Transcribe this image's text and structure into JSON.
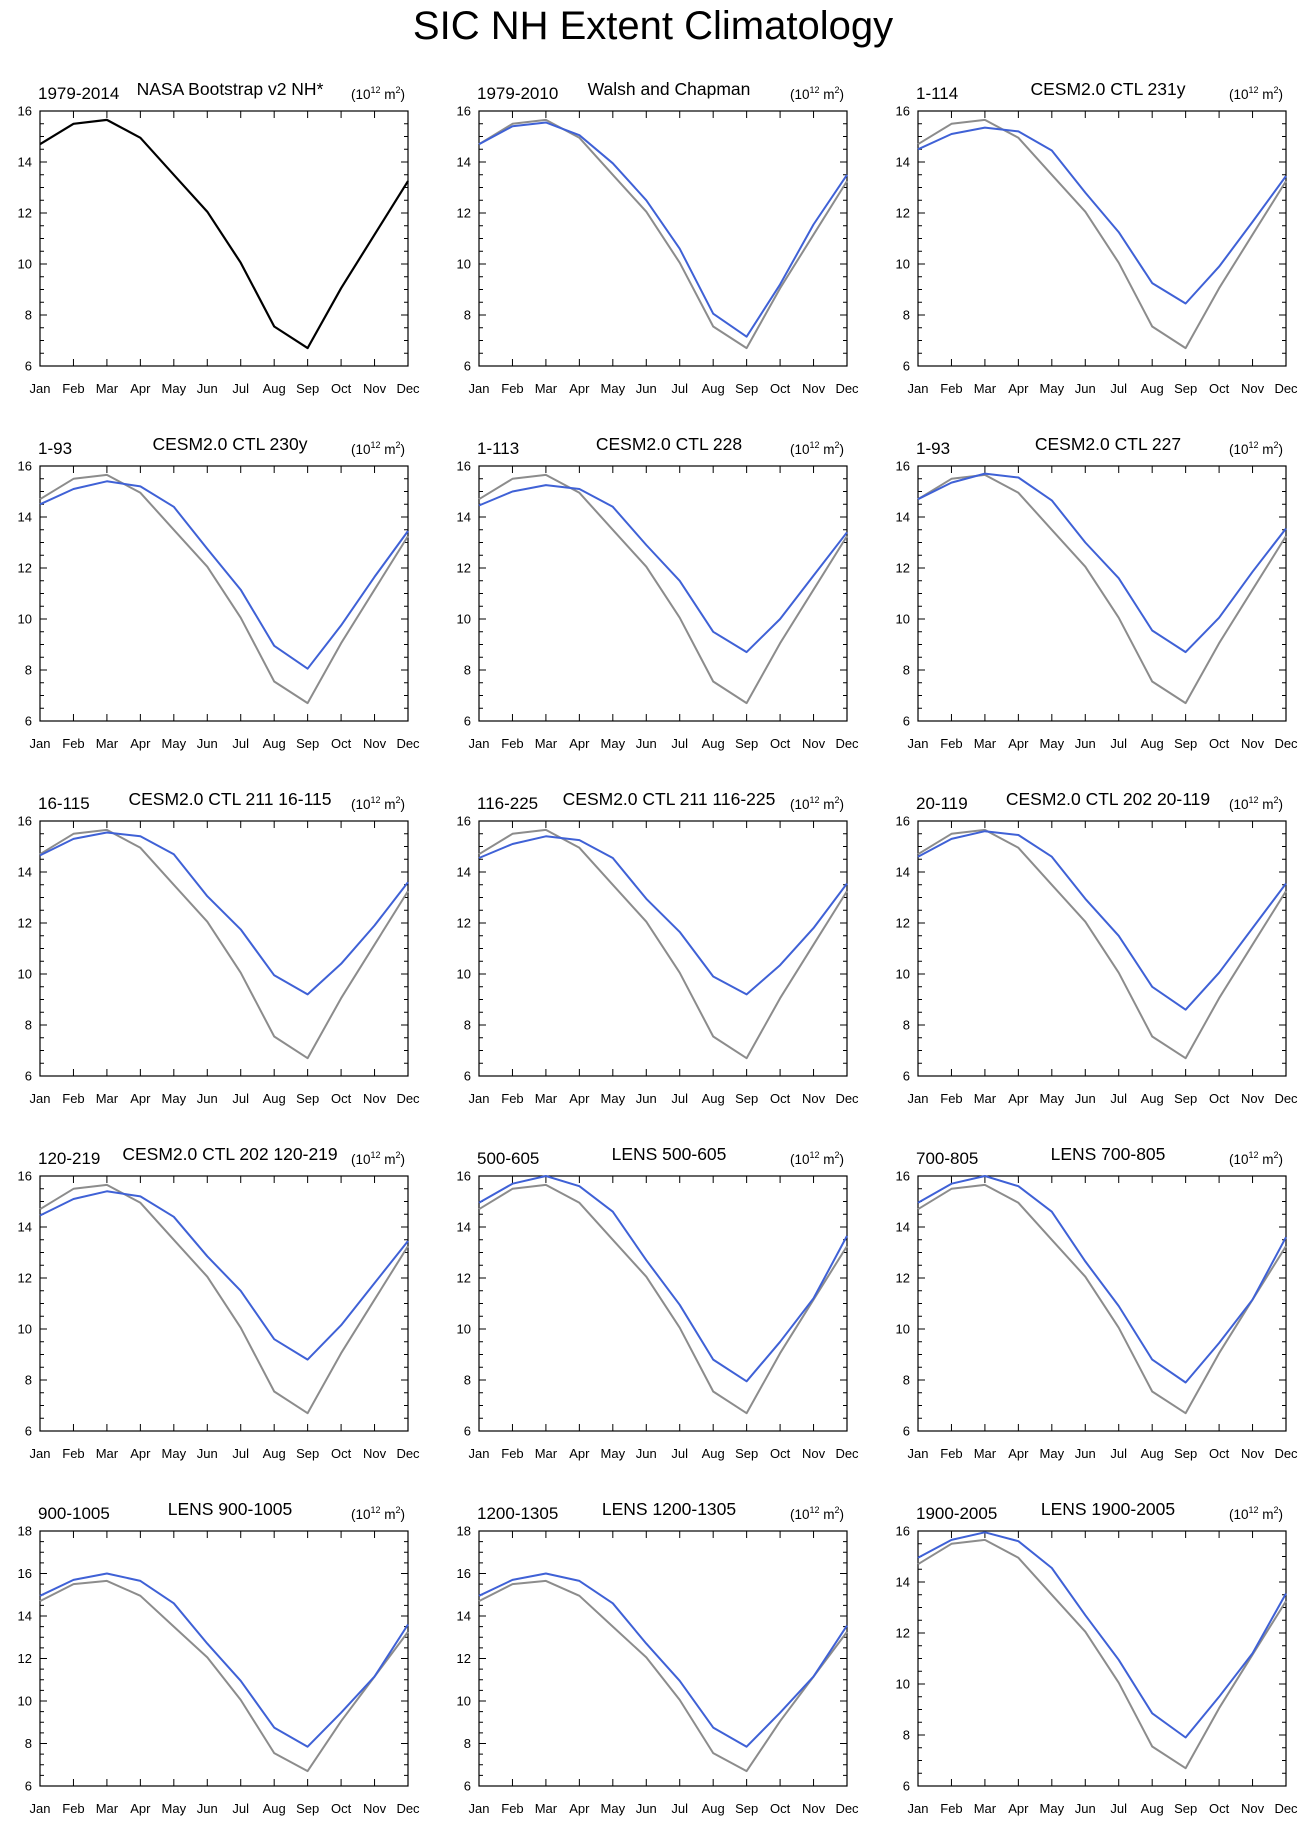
{
  "figure": {
    "title": "SIC NH Extent Climatology"
  },
  "colors": {
    "observation": "#000000",
    "reference": "#8c8c8c",
    "model": "#3f61d6"
  },
  "chart_data": [
    {
      "type": "line",
      "left_title": "1979-2014",
      "center_title": "NASA Bootstrap v2 NH*",
      "right_title": "(10",
      "right_title_exp": "12",
      "right_title_unit": "m",
      "right_title_unit_exp": "2",
      "right_title_close": ")",
      "categories": [
        "Jan",
        "Feb",
        "Mar",
        "Apr",
        "May",
        "Jun",
        "Jul",
        "Aug",
        "Sep",
        "Oct",
        "Nov",
        "Dec"
      ],
      "ylim": [
        6,
        16
      ],
      "yticks": [
        6,
        8,
        10,
        12,
        14,
        16
      ],
      "series": [
        {
          "role": "observation",
          "values": [
            14.7,
            15.5,
            15.65,
            14.95,
            13.5,
            12.05,
            10.05,
            7.55,
            6.7,
            9.05,
            11.15,
            13.25
          ]
        }
      ]
    },
    {
      "type": "line",
      "left_title": "1979-2010",
      "center_title": "Walsh and Chapman",
      "right_title": "(10",
      "right_title_exp": "12",
      "right_title_unit": "m",
      "right_title_unit_exp": "2",
      "right_title_close": ")",
      "categories": [
        "Jan",
        "Feb",
        "Mar",
        "Apr",
        "May",
        "Jun",
        "Jul",
        "Aug",
        "Sep",
        "Oct",
        "Nov",
        "Dec"
      ],
      "ylim": [
        6,
        16
      ],
      "yticks": [
        6,
        8,
        10,
        12,
        14,
        16
      ],
      "series": [
        {
          "role": "reference",
          "values": [
            14.7,
            15.5,
            15.65,
            14.95,
            13.5,
            12.05,
            10.05,
            7.55,
            6.7,
            9.05,
            11.15,
            13.25
          ]
        },
        {
          "role": "model",
          "values": [
            14.7,
            15.4,
            15.55,
            15.05,
            13.95,
            12.5,
            10.6,
            8.05,
            7.15,
            9.2,
            11.55,
            13.5
          ]
        }
      ]
    },
    {
      "type": "line",
      "left_title": "1-114",
      "center_title": "CESM2.0 CTL 231y",
      "right_title": "(10",
      "right_title_exp": "12",
      "right_title_unit": "m",
      "right_title_unit_exp": "2",
      "right_title_close": ")",
      "categories": [
        "Jan",
        "Feb",
        "Mar",
        "Apr",
        "May",
        "Jun",
        "Jul",
        "Aug",
        "Sep",
        "Oct",
        "Nov",
        "Dec"
      ],
      "ylim": [
        6,
        16
      ],
      "yticks": [
        6,
        8,
        10,
        12,
        14,
        16
      ],
      "series": [
        {
          "role": "reference",
          "values": [
            14.7,
            15.5,
            15.65,
            14.95,
            13.5,
            12.05,
            10.05,
            7.55,
            6.7,
            9.05,
            11.15,
            13.25
          ]
        },
        {
          "role": "model",
          "values": [
            14.5,
            15.1,
            15.35,
            15.2,
            14.45,
            12.8,
            11.25,
            9.25,
            8.45,
            9.9,
            11.65,
            13.45
          ]
        }
      ]
    },
    {
      "type": "line",
      "left_title": "1-93",
      "center_title": "CESM2.0 CTL 230y",
      "right_title": "(10",
      "right_title_exp": "12",
      "right_title_unit": "m",
      "right_title_unit_exp": "2",
      "right_title_close": ")",
      "categories": [
        "Jan",
        "Feb",
        "Mar",
        "Apr",
        "May",
        "Jun",
        "Jul",
        "Aug",
        "Sep",
        "Oct",
        "Nov",
        "Dec"
      ],
      "ylim": [
        6,
        16
      ],
      "yticks": [
        6,
        8,
        10,
        12,
        14,
        16
      ],
      "series": [
        {
          "role": "reference",
          "values": [
            14.7,
            15.5,
            15.65,
            14.95,
            13.5,
            12.05,
            10.05,
            7.55,
            6.7,
            9.05,
            11.15,
            13.25
          ]
        },
        {
          "role": "model",
          "values": [
            14.5,
            15.1,
            15.4,
            15.2,
            14.4,
            12.75,
            11.15,
            8.95,
            8.05,
            9.75,
            11.65,
            13.45
          ]
        }
      ]
    },
    {
      "type": "line",
      "left_title": "1-113",
      "center_title": "CESM2.0 CTL 228",
      "right_title": "(10",
      "right_title_exp": "12",
      "right_title_unit": "m",
      "right_title_unit_exp": "2",
      "right_title_close": ")",
      "categories": [
        "Jan",
        "Feb",
        "Mar",
        "Apr",
        "May",
        "Jun",
        "Jul",
        "Aug",
        "Sep",
        "Oct",
        "Nov",
        "Dec"
      ],
      "ylim": [
        6,
        16
      ],
      "yticks": [
        6,
        8,
        10,
        12,
        14,
        16
      ],
      "series": [
        {
          "role": "reference",
          "values": [
            14.7,
            15.5,
            15.65,
            14.95,
            13.5,
            12.05,
            10.05,
            7.55,
            6.7,
            9.05,
            11.15,
            13.25
          ]
        },
        {
          "role": "model",
          "values": [
            14.45,
            15.0,
            15.25,
            15.1,
            14.4,
            12.9,
            11.5,
            9.5,
            8.7,
            10.0,
            11.7,
            13.4
          ]
        }
      ]
    },
    {
      "type": "line",
      "left_title": "1-93",
      "center_title": "CESM2.0 CTL 227",
      "right_title": "(10",
      "right_title_exp": "12",
      "right_title_unit": "m",
      "right_title_unit_exp": "2",
      "right_title_close": ")",
      "categories": [
        "Jan",
        "Feb",
        "Mar",
        "Apr",
        "May",
        "Jun",
        "Jul",
        "Aug",
        "Sep",
        "Oct",
        "Nov",
        "Dec"
      ],
      "ylim": [
        6,
        16
      ],
      "yticks": [
        6,
        8,
        10,
        12,
        14,
        16
      ],
      "series": [
        {
          "role": "reference",
          "values": [
            14.7,
            15.5,
            15.65,
            14.95,
            13.5,
            12.05,
            10.05,
            7.55,
            6.7,
            9.05,
            11.15,
            13.25
          ]
        },
        {
          "role": "model",
          "values": [
            14.7,
            15.35,
            15.7,
            15.55,
            14.65,
            13.0,
            11.6,
            9.55,
            8.7,
            10.05,
            11.85,
            13.55
          ]
        }
      ]
    },
    {
      "type": "line",
      "left_title": "16-115",
      "center_title": "CESM2.0 CTL 211 16-115",
      "right_title": "(10",
      "right_title_exp": "12",
      "right_title_unit": "m",
      "right_title_unit_exp": "2",
      "right_title_close": ")",
      "categories": [
        "Jan",
        "Feb",
        "Mar",
        "Apr",
        "May",
        "Jun",
        "Jul",
        "Aug",
        "Sep",
        "Oct",
        "Nov",
        "Dec"
      ],
      "ylim": [
        6,
        16
      ],
      "yticks": [
        6,
        8,
        10,
        12,
        14,
        16
      ],
      "series": [
        {
          "role": "reference",
          "values": [
            14.7,
            15.5,
            15.65,
            14.95,
            13.5,
            12.05,
            10.05,
            7.55,
            6.7,
            9.05,
            11.15,
            13.25
          ]
        },
        {
          "role": "model",
          "values": [
            14.65,
            15.3,
            15.55,
            15.4,
            14.7,
            13.05,
            11.75,
            9.95,
            9.2,
            10.4,
            11.9,
            13.6
          ]
        }
      ]
    },
    {
      "type": "line",
      "left_title": "116-225",
      "center_title": "CESM2.0 CTL 211 116-225",
      "right_title": "(10",
      "right_title_exp": "12",
      "right_title_unit": "m",
      "right_title_unit_exp": "2",
      "right_title_close": ")",
      "categories": [
        "Jan",
        "Feb",
        "Mar",
        "Apr",
        "May",
        "Jun",
        "Jul",
        "Aug",
        "Sep",
        "Oct",
        "Nov",
        "Dec"
      ],
      "ylim": [
        6,
        16
      ],
      "yticks": [
        6,
        8,
        10,
        12,
        14,
        16
      ],
      "series": [
        {
          "role": "reference",
          "values": [
            14.7,
            15.5,
            15.65,
            14.95,
            13.5,
            12.05,
            10.05,
            7.55,
            6.7,
            9.05,
            11.15,
            13.25
          ]
        },
        {
          "role": "model",
          "values": [
            14.55,
            15.1,
            15.4,
            15.25,
            14.55,
            12.95,
            11.65,
            9.9,
            9.2,
            10.35,
            11.8,
            13.55
          ]
        }
      ]
    },
    {
      "type": "line",
      "left_title": "20-119",
      "center_title": "CESM2.0 CTL 202 20-119",
      "right_title": "(10",
      "right_title_exp": "12",
      "right_title_unit": "m",
      "right_title_unit_exp": "2",
      "right_title_close": ")",
      "categories": [
        "Jan",
        "Feb",
        "Mar",
        "Apr",
        "May",
        "Jun",
        "Jul",
        "Aug",
        "Sep",
        "Oct",
        "Nov",
        "Dec"
      ],
      "ylim": [
        6,
        16
      ],
      "yticks": [
        6,
        8,
        10,
        12,
        14,
        16
      ],
      "series": [
        {
          "role": "reference",
          "values": [
            14.7,
            15.5,
            15.65,
            14.95,
            13.5,
            12.05,
            10.05,
            7.55,
            6.7,
            9.05,
            11.15,
            13.25
          ]
        },
        {
          "role": "model",
          "values": [
            14.6,
            15.3,
            15.6,
            15.45,
            14.6,
            12.95,
            11.5,
            9.5,
            8.6,
            10.05,
            11.8,
            13.55
          ]
        }
      ]
    },
    {
      "type": "line",
      "left_title": "120-219",
      "center_title": "CESM2.0 CTL 202 120-219",
      "right_title": "(10",
      "right_title_exp": "12",
      "right_title_unit": "m",
      "right_title_unit_exp": "2",
      "right_title_close": ")",
      "categories": [
        "Jan",
        "Feb",
        "Mar",
        "Apr",
        "May",
        "Jun",
        "Jul",
        "Aug",
        "Sep",
        "Oct",
        "Nov",
        "Dec"
      ],
      "ylim": [
        6,
        16
      ],
      "yticks": [
        6,
        8,
        10,
        12,
        14,
        16
      ],
      "series": [
        {
          "role": "reference",
          "values": [
            14.7,
            15.5,
            15.65,
            14.95,
            13.5,
            12.05,
            10.05,
            7.55,
            6.7,
            9.05,
            11.15,
            13.25
          ]
        },
        {
          "role": "model",
          "values": [
            14.45,
            15.1,
            15.4,
            15.2,
            14.4,
            12.85,
            11.5,
            9.6,
            8.8,
            10.15,
            11.8,
            13.45
          ]
        }
      ]
    },
    {
      "type": "line",
      "left_title": "500-605",
      "center_title": "LENS 500-605",
      "right_title": "(10",
      "right_title_exp": "12",
      "right_title_unit": "m",
      "right_title_unit_exp": "2",
      "right_title_close": ")",
      "categories": [
        "Jan",
        "Feb",
        "Mar",
        "Apr",
        "May",
        "Jun",
        "Jul",
        "Aug",
        "Sep",
        "Oct",
        "Nov",
        "Dec"
      ],
      "ylim": [
        6,
        16
      ],
      "yticks": [
        6,
        8,
        10,
        12,
        14,
        16
      ],
      "series": [
        {
          "role": "reference",
          "values": [
            14.7,
            15.5,
            15.65,
            14.95,
            13.5,
            12.05,
            10.05,
            7.55,
            6.7,
            9.05,
            11.15,
            13.25
          ]
        },
        {
          "role": "model",
          "values": [
            14.95,
            15.7,
            16.0,
            15.6,
            14.6,
            12.7,
            10.95,
            8.8,
            7.95,
            9.5,
            11.2,
            13.65
          ]
        }
      ]
    },
    {
      "type": "line",
      "left_title": "700-805",
      "center_title": "LENS 700-805",
      "right_title": "(10",
      "right_title_exp": "12",
      "right_title_unit": "m",
      "right_title_unit_exp": "2",
      "right_title_close": ")",
      "categories": [
        "Jan",
        "Feb",
        "Mar",
        "Apr",
        "May",
        "Jun",
        "Jul",
        "Aug",
        "Sep",
        "Oct",
        "Nov",
        "Dec"
      ],
      "ylim": [
        6,
        16
      ],
      "yticks": [
        6,
        8,
        10,
        12,
        14,
        16
      ],
      "series": [
        {
          "role": "reference",
          "values": [
            14.7,
            15.5,
            15.65,
            14.95,
            13.5,
            12.05,
            10.05,
            7.55,
            6.7,
            9.05,
            11.15,
            13.25
          ]
        },
        {
          "role": "model",
          "values": [
            14.95,
            15.7,
            16.0,
            15.6,
            14.6,
            12.65,
            10.9,
            8.8,
            7.9,
            9.45,
            11.15,
            13.6
          ]
        }
      ]
    },
    {
      "type": "line",
      "left_title": "900-1005",
      "center_title": "LENS 900-1005",
      "right_title": "(10",
      "right_title_exp": "12",
      "right_title_unit": "m",
      "right_title_unit_exp": "2",
      "right_title_close": ")",
      "categories": [
        "Jan",
        "Feb",
        "Mar",
        "Apr",
        "May",
        "Jun",
        "Jul",
        "Aug",
        "Sep",
        "Oct",
        "Nov",
        "Dec"
      ],
      "ylim": [
        6,
        18
      ],
      "yticks": [
        6,
        8,
        10,
        12,
        14,
        16,
        18
      ],
      "series": [
        {
          "role": "reference",
          "values": [
            14.7,
            15.5,
            15.65,
            14.95,
            13.5,
            12.05,
            10.05,
            7.55,
            6.7,
            9.05,
            11.15,
            13.25
          ]
        },
        {
          "role": "model",
          "values": [
            14.95,
            15.7,
            16.0,
            15.65,
            14.6,
            12.7,
            10.95,
            8.75,
            7.85,
            9.45,
            11.15,
            13.6
          ]
        }
      ]
    },
    {
      "type": "line",
      "left_title": "1200-1305",
      "center_title": "LENS 1200-1305",
      "right_title": "(10",
      "right_title_exp": "12",
      "right_title_unit": "m",
      "right_title_unit_exp": "2",
      "right_title_close": ")",
      "categories": [
        "Jan",
        "Feb",
        "Mar",
        "Apr",
        "May",
        "Jun",
        "Jul",
        "Aug",
        "Sep",
        "Oct",
        "Nov",
        "Dec"
      ],
      "ylim": [
        6,
        18
      ],
      "yticks": [
        6,
        8,
        10,
        12,
        14,
        16,
        18
      ],
      "series": [
        {
          "role": "reference",
          "values": [
            14.7,
            15.5,
            15.65,
            14.95,
            13.5,
            12.05,
            10.05,
            7.55,
            6.7,
            9.05,
            11.15,
            13.25
          ]
        },
        {
          "role": "model",
          "values": [
            14.95,
            15.7,
            16.0,
            15.65,
            14.6,
            12.7,
            10.95,
            8.75,
            7.85,
            9.45,
            11.15,
            13.55
          ]
        }
      ]
    },
    {
      "type": "line",
      "left_title": "1900-2005",
      "center_title": "LENS 1900-2005",
      "right_title": "(10",
      "right_title_exp": "12",
      "right_title_unit": "m",
      "right_title_unit_exp": "2",
      "right_title_close": ")",
      "categories": [
        "Jan",
        "Feb",
        "Mar",
        "Apr",
        "May",
        "Jun",
        "Jul",
        "Aug",
        "Sep",
        "Oct",
        "Nov",
        "Dec"
      ],
      "ylim": [
        6,
        16
      ],
      "yticks": [
        6,
        8,
        10,
        12,
        14,
        16
      ],
      "series": [
        {
          "role": "reference",
          "values": [
            14.7,
            15.5,
            15.65,
            14.95,
            13.5,
            12.05,
            10.05,
            7.55,
            6.7,
            9.05,
            11.15,
            13.25
          ]
        },
        {
          "role": "model",
          "values": [
            14.95,
            15.65,
            15.95,
            15.6,
            14.55,
            12.7,
            10.95,
            8.85,
            7.9,
            9.5,
            11.2,
            13.55
          ]
        }
      ]
    }
  ]
}
